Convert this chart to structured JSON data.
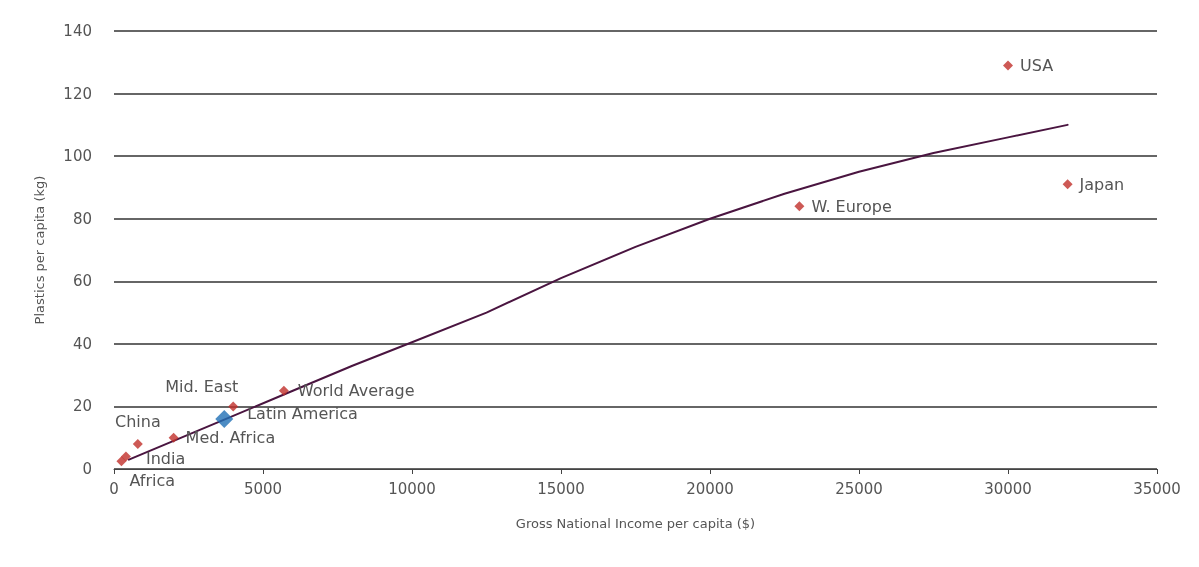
{
  "chart_data": {
    "type": "scatter",
    "xlabel": "Gross National Income per capita ($)",
    "ylabel": "Plastics per capita (kg)",
    "xlim": [
      0,
      35000
    ],
    "xticks": [
      0,
      5000,
      10000,
      15000,
      20000,
      25000,
      30000,
      35000
    ],
    "ylim": [
      0,
      140
    ],
    "yticks": [
      0,
      20,
      40,
      60,
      80,
      100,
      120,
      140
    ],
    "grid": "y",
    "marker": "diamond",
    "series": [
      {
        "color": "#c0302a",
        "x": [
          30000,
          32000,
          23000,
          5700,
          4000,
          2000,
          800,
          400,
          250
        ],
        "values": [
          129,
          91,
          84,
          25,
          20,
          10,
          8,
          4,
          2.5
        ]
      },
      {
        "color": "#1f6fb5",
        "x": [
          3700
        ],
        "values": [
          16
        ]
      },
      {
        "type": "line",
        "color": "#4a1540",
        "marker": "none",
        "line_style": "solid",
        "x": [
          500,
          2000,
          4000,
          6000,
          8000,
          10000,
          12500,
          15000,
          17500,
          20000,
          22500,
          25000,
          27500,
          30000,
          32000
        ],
        "values": [
          3,
          9,
          17,
          25,
          33,
          40.5,
          50,
          61,
          71,
          80,
          88,
          95,
          101,
          106,
          110
        ]
      }
    ],
    "annotations": [
      {
        "text": "USA",
        "x": 30000,
        "y": 129
      },
      {
        "text": "Japan",
        "x": 32000,
        "y": 91
      },
      {
        "text": "W. Europe",
        "x": 23000,
        "y": 84
      },
      {
        "text": "World Average",
        "x": 5700,
        "y": 25
      },
      {
        "text": "Latin America",
        "x": 4000,
        "y": 20
      },
      {
        "text": "Mid. East",
        "x": 3700,
        "y": 16
      },
      {
        "text": "Med. Africa",
        "x": 2000,
        "y": 10
      },
      {
        "text": "China",
        "x": 800,
        "y": 8
      },
      {
        "text": "India",
        "x": 400,
        "y": 4
      },
      {
        "text": "Africa",
        "x": 250,
        "y": 2.5
      }
    ]
  }
}
